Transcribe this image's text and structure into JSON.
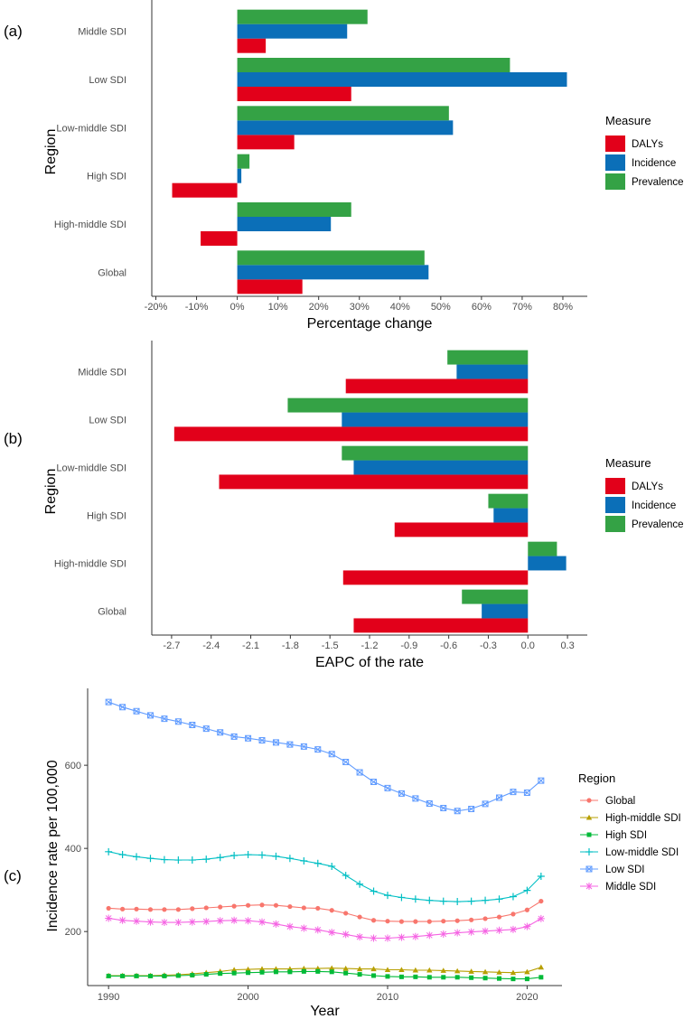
{
  "panel_labels": [
    "(a)",
    "(b)",
    "(c)"
  ],
  "chart_data": [
    {
      "type": "bar",
      "orientation": "horizontal",
      "panel": "(a)",
      "categories": [
        "Middle SDI",
        "Low SDI",
        "Low-middle SDI",
        "High SDI",
        "High-middle SDI",
        "Global"
      ],
      "series": [
        {
          "name": "DALYs",
          "color": "#e2001a",
          "values": [
            7,
            28,
            14,
            -16,
            -9,
            16
          ]
        },
        {
          "name": "Incidence",
          "color": "#0b6fb8",
          "values": [
            27,
            81,
            53,
            1,
            23,
            47
          ]
        },
        {
          "name": "Prevalence",
          "color": "#34a245",
          "values": [
            32,
            67,
            52,
            3,
            28,
            46
          ]
        }
      ],
      "xlabel": "Percentage change",
      "ylabel": "Region",
      "xlim": [
        -21,
        86
      ],
      "xticks": [
        -20,
        -10,
        0,
        10,
        20,
        30,
        40,
        50,
        60,
        70,
        80
      ],
      "xtick_labels": [
        "-20%",
        "-10%",
        "0%",
        "10%",
        "20%",
        "30%",
        "40%",
        "50%",
        "60%",
        "70%",
        "80%"
      ],
      "legend_title": "Measure",
      "legend_position": "right"
    },
    {
      "type": "bar",
      "orientation": "horizontal",
      "panel": "(b)",
      "categories": [
        "Middle SDI",
        "Low SDI",
        "Low-middle SDI",
        "High SDI",
        "High-middle SDI",
        "Global"
      ],
      "series": [
        {
          "name": "DALYs",
          "color": "#e2001a",
          "values": [
            -1.38,
            -2.68,
            -2.34,
            -1.01,
            -1.4,
            -1.32
          ]
        },
        {
          "name": "Incidence",
          "color": "#0b6fb8",
          "values": [
            -0.54,
            -1.41,
            -1.32,
            -0.26,
            0.29,
            -0.35
          ]
        },
        {
          "name": "Prevalence",
          "color": "#34a245",
          "values": [
            -0.61,
            -1.82,
            -1.41,
            -0.3,
            0.22,
            -0.5
          ]
        }
      ],
      "xlabel": "EAPC of the rate",
      "ylabel": "Region",
      "xlim": [
        -2.85,
        0.45
      ],
      "xticks": [
        -2.7,
        -2.4,
        -2.1,
        -1.8,
        -1.5,
        -1.2,
        -0.9,
        -0.6,
        -0.3,
        0.0,
        0.3
      ],
      "xtick_labels": [
        "-2.7",
        "-2.4",
        "-2.1",
        "-1.8",
        "-1.5",
        "-1.2",
        "-0.9",
        "-0.6",
        "-0.3",
        "0.0",
        "0.3"
      ],
      "legend_title": "Measure",
      "legend_position": "right"
    },
    {
      "type": "line",
      "panel": "(c)",
      "x": [
        1990,
        1991,
        1992,
        1993,
        1994,
        1995,
        1996,
        1997,
        1998,
        1999,
        2000,
        2001,
        2002,
        2003,
        2004,
        2005,
        2006,
        2007,
        2008,
        2009,
        2010,
        2011,
        2012,
        2013,
        2014,
        2015,
        2016,
        2017,
        2018,
        2019,
        2020,
        2021
      ],
      "series": [
        {
          "name": "Global",
          "color": "#f8766d",
          "marker": "circle",
          "values": [
            256,
            254,
            254,
            253,
            253,
            253,
            255,
            257,
            259,
            261,
            263,
            264,
            263,
            260,
            257,
            256,
            251,
            244,
            235,
            227,
            225,
            224,
            224,
            224,
            225,
            226,
            228,
            231,
            235,
            242,
            252,
            273
          ]
        },
        {
          "name": "High-middle SDI",
          "color": "#b79f00",
          "marker": "triangle",
          "values": [
            94,
            94,
            94,
            94,
            95,
            96,
            98,
            101,
            104,
            108,
            109,
            110,
            110,
            110,
            111,
            111,
            112,
            111,
            110,
            110,
            108,
            108,
            107,
            107,
            106,
            105,
            104,
            103,
            102,
            101,
            103,
            114
          ]
        },
        {
          "name": "High SDI",
          "color": "#00ba38",
          "marker": "square",
          "values": [
            93,
            93,
            93,
            93,
            93,
            94,
            95,
            97,
            99,
            100,
            101,
            102,
            103,
            103,
            104,
            104,
            103,
            100,
            97,
            94,
            92,
            91,
            91,
            90,
            90,
            90,
            89,
            88,
            87,
            86,
            86,
            90
          ]
        },
        {
          "name": "Low-middle SDI",
          "color": "#00bfc4",
          "marker": "plus",
          "values": [
            392,
            385,
            380,
            376,
            373,
            372,
            372,
            374,
            378,
            383,
            385,
            384,
            381,
            376,
            370,
            364,
            357,
            335,
            314,
            297,
            287,
            282,
            278,
            275,
            273,
            272,
            273,
            275,
            278,
            284,
            299,
            333
          ]
        },
        {
          "name": "Low SDI",
          "color": "#619cff",
          "marker": "boxcross",
          "values": [
            752,
            740,
            730,
            720,
            712,
            705,
            697,
            688,
            679,
            669,
            665,
            660,
            655,
            650,
            645,
            638,
            627,
            608,
            583,
            560,
            545,
            532,
            520,
            508,
            497,
            490,
            495,
            507,
            522,
            536,
            534,
            563
          ]
        },
        {
          "name": "Middle SDI",
          "color": "#f564e3",
          "marker": "asterisk",
          "values": [
            232,
            227,
            225,
            223,
            222,
            222,
            223,
            224,
            226,
            227,
            226,
            223,
            218,
            212,
            208,
            204,
            198,
            193,
            187,
            184,
            184,
            186,
            188,
            191,
            194,
            197,
            199,
            201,
            203,
            205,
            212,
            231
          ]
        }
      ],
      "xlabel": "Year",
      "ylabel": "Incidence rate per 100,000",
      "xlim": [
        1988.5,
        2022.5
      ],
      "ylim": [
        70,
        785
      ],
      "xticks": [
        1990,
        2000,
        2010,
        2020
      ],
      "xtick_labels": [
        "1990",
        "2000",
        "2010",
        "2020"
      ],
      "yticks": [
        200,
        400,
        600
      ],
      "ytick_labels": [
        "200",
        "400",
        "600"
      ],
      "legend_title": "Region",
      "legend_position": "right"
    }
  ]
}
